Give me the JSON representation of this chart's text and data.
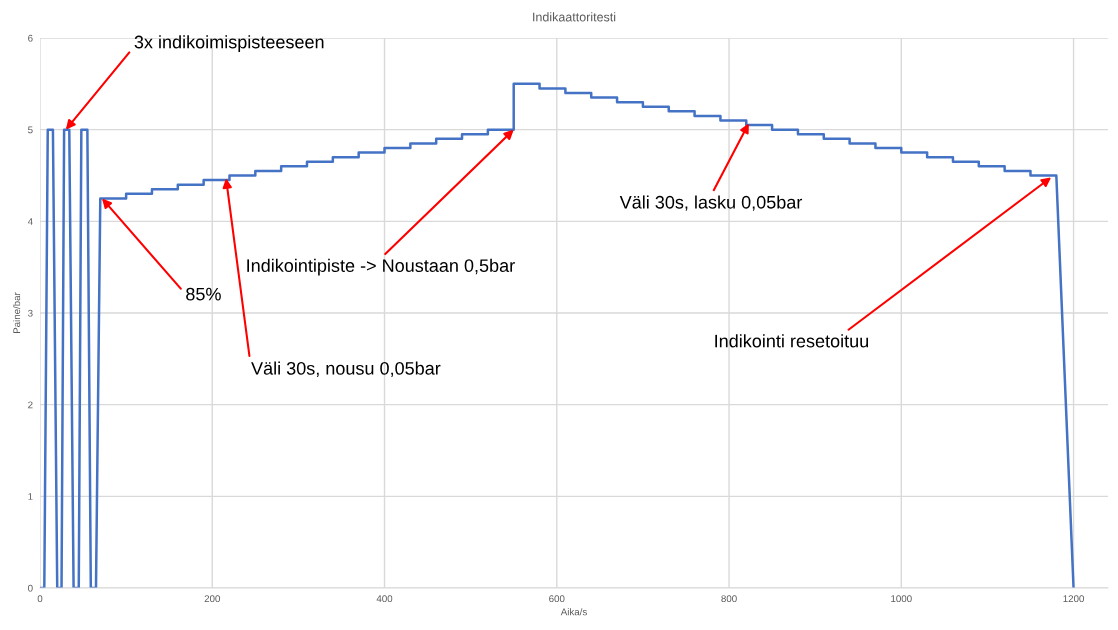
{
  "chart_data": {
    "type": "line",
    "title": "Indikaattoritesti",
    "xlabel": "Aika/s",
    "ylabel": "Paine/bar",
    "x": [
      0,
      5,
      9,
      15,
      20,
      25,
      28,
      34,
      39,
      45,
      48,
      55,
      59,
      65,
      70,
      100,
      100,
      130,
      130,
      160,
      160,
      190,
      190,
      220,
      220,
      250,
      250,
      280,
      280,
      310,
      310,
      340,
      340,
      370,
      370,
      400,
      400,
      430,
      430,
      460,
      460,
      490,
      490,
      520,
      520,
      550,
      550,
      580,
      580,
      610,
      610,
      640,
      640,
      670,
      670,
      700,
      700,
      730,
      730,
      760,
      760,
      790,
      790,
      820,
      820,
      850,
      850,
      880,
      880,
      910,
      910,
      940,
      940,
      970,
      970,
      1000,
      1000,
      1030,
      1030,
      1060,
      1060,
      1090,
      1090,
      1120,
      1120,
      1150,
      1150,
      1180,
      1200
    ],
    "series": [
      {
        "color": "#4472c4",
        "values": [
          0,
          0,
          5,
          5,
          0,
          0,
          5,
          5,
          0,
          0,
          5,
          5,
          0,
          0,
          4.25,
          4.25,
          4.3,
          4.3,
          4.35,
          4.35,
          4.4,
          4.4,
          4.45,
          4.45,
          4.5,
          4.5,
          4.55,
          4.55,
          4.6,
          4.6,
          4.65,
          4.65,
          4.7,
          4.7,
          4.75,
          4.75,
          4.8,
          4.8,
          4.85,
          4.85,
          4.9,
          4.9,
          4.95,
          4.95,
          5.0,
          5.0,
          5.5,
          5.5,
          5.45,
          5.45,
          5.4,
          5.4,
          5.35,
          5.35,
          5.3,
          5.3,
          5.25,
          5.25,
          5.2,
          5.2,
          5.15,
          5.15,
          5.1,
          5.1,
          5.05,
          5.05,
          5.0,
          5.0,
          4.95,
          4.95,
          4.9,
          4.9,
          4.85,
          4.85,
          4.8,
          4.8,
          4.75,
          4.75,
          4.7,
          4.7,
          4.65,
          4.65,
          4.6,
          4.6,
          4.55,
          4.55,
          4.5,
          4.5,
          0
        ]
      }
    ],
    "xlim": [
      0,
      1240
    ],
    "xticks": [
      0,
      200,
      400,
      600,
      800,
      1000,
      1200
    ],
    "ylim": [
      0,
      6
    ],
    "yticks": [
      0,
      1,
      2,
      3,
      4,
      5,
      6
    ],
    "grid": true,
    "marker": "none",
    "line_style": "solid",
    "annotations": [
      {
        "text": "3x indikoimispisteeseen",
        "x": 30,
        "y": 5
      },
      {
        "text": "85%",
        "x": 72,
        "y": 4.25
      },
      {
        "text": "Väli 30s, nousu 0,05bar",
        "x": 216,
        "y": 4.47
      },
      {
        "text": "Indikointipiste -> Noustaan 0,5bar",
        "x": 550,
        "y": 5.0
      },
      {
        "text": "Väli 30s, lasku 0,05bar",
        "x": 823,
        "y": 5.07
      },
      {
        "text": "Indikointi resetoituu",
        "x": 1174,
        "y": 4.48
      }
    ]
  }
}
